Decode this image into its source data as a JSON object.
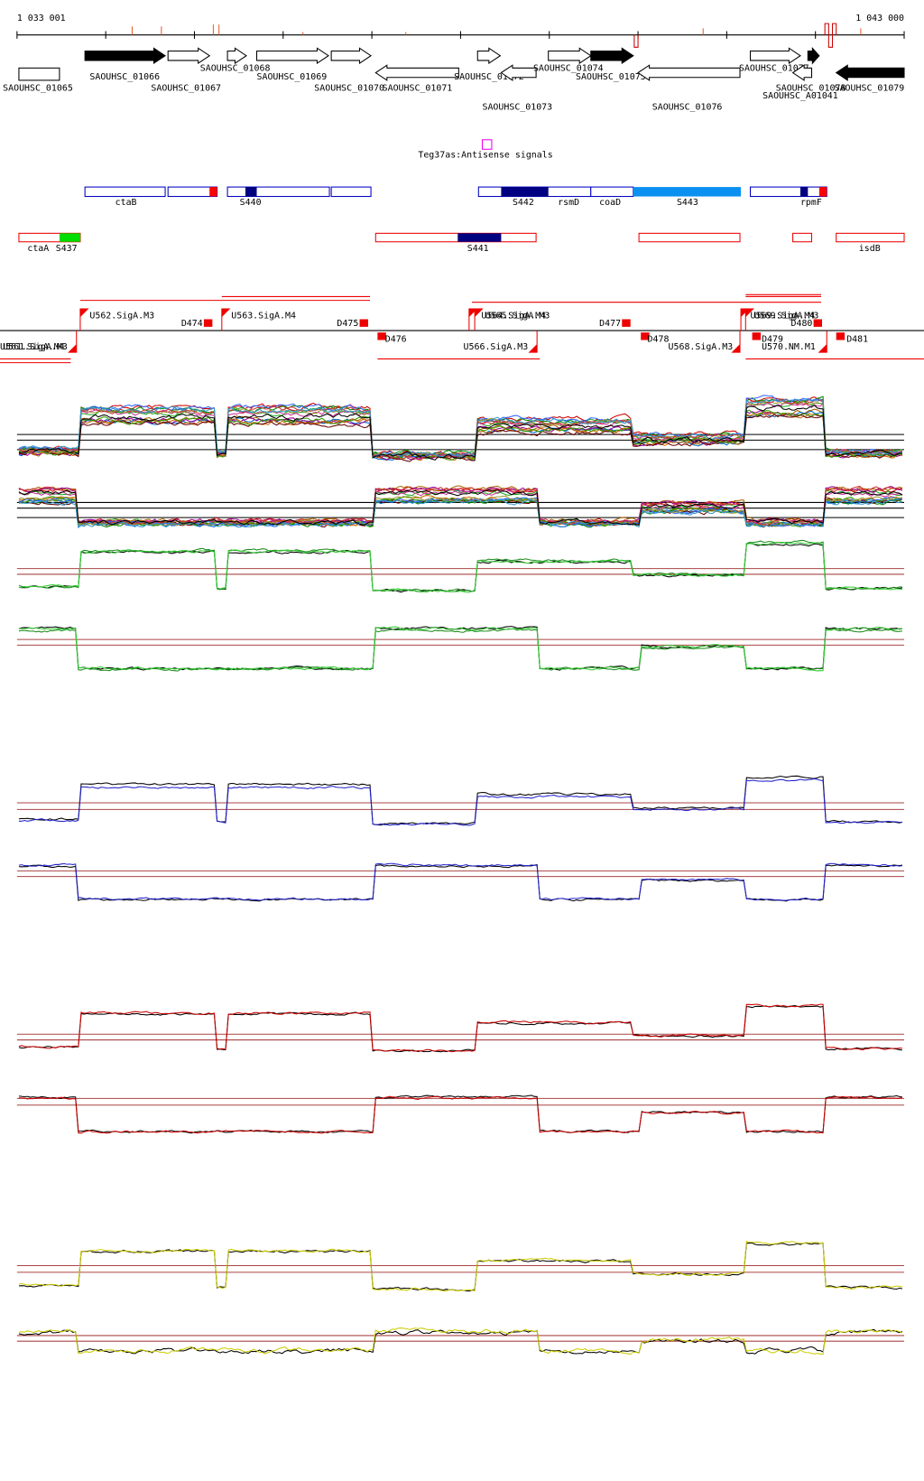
{
  "header": {
    "start": "1 033 001",
    "end": "1 043 000"
  },
  "genes": [
    "SAOUHSC_01065",
    "SAOUHSC_01066",
    "SAOUHSC_01067",
    "SAOUHSC_01068",
    "SAOUHSC_01069",
    "SAOUHSC_01070",
    "SAOUHSC_01071",
    "SAOUHSC_01072",
    "SAOUHSC_01073",
    "SAOUHSC_01074",
    "SAOUHSC_01075",
    "SAOUHSC_01076",
    "SAOUHSC_01077",
    "SAOUHSC_01078",
    "SAOUHSC_A01041",
    "SAOUHSC_01079"
  ],
  "antisense_label": "Teg37as:Antisense signals",
  "features": [
    "ctaB",
    "S440",
    "S442",
    "rsmD",
    "coaD",
    "S443",
    "rpmF",
    "ctaA",
    "S437",
    "S441",
    "isdB"
  ],
  "promoters": [
    "U561.SigA.M4",
    "U561.SigA.M3",
    "U562.SigA.M3",
    "D474",
    "U563.SigA.M4",
    "D475",
    "D476",
    "U564.SigA.M4",
    "U565.SigA.M3",
    "U566.SigA.M3",
    "D477",
    "D478",
    "U568.SigA.M3",
    "U569.SigA.M4",
    "U569.SigA.M3",
    "D479",
    "D480",
    "U570.NM.M1",
    "D481"
  ]
}
